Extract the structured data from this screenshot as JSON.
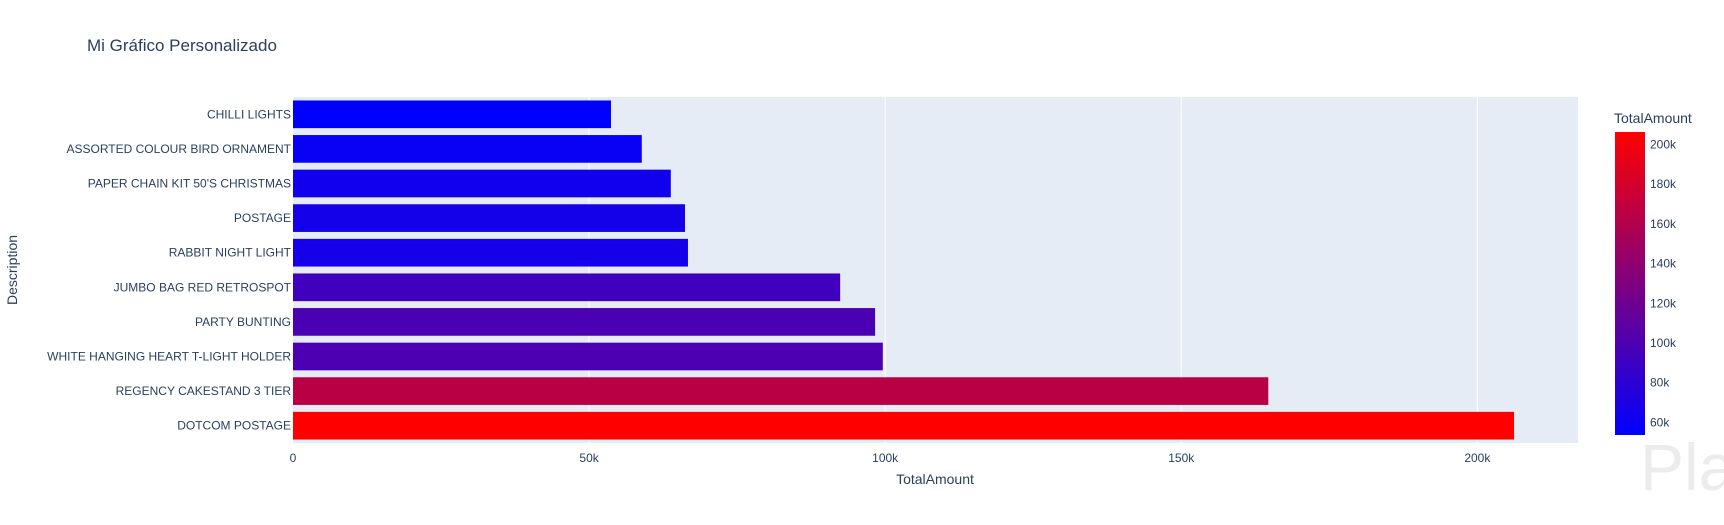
{
  "chart_data": {
    "type": "bar",
    "orientation": "horizontal",
    "title": "Mi Gráfico Personalizado",
    "xlabel": "TotalAmount",
    "ylabel": "Description",
    "categories": [
      "CHILLI LIGHTS",
      "ASSORTED COLOUR BIRD ORNAMENT",
      "PAPER CHAIN KIT 50'S CHRISTMAS",
      "POSTAGE",
      "RABBIT NIGHT LIGHT",
      "JUMBO BAG RED RETROSPOT",
      "PARTY BUNTING",
      "WHITE HANGING HEART T-LIGHT HOLDER",
      "REGENCY CAKESTAND 3 TIER",
      "DOTCOM POSTAGE"
    ],
    "values": [
      53700,
      58900,
      63800,
      66200,
      66700,
      92400,
      98300,
      99600,
      164700,
      206200
    ],
    "xlim": [
      0,
      217000
    ],
    "xticks": [
      0,
      50000,
      100000,
      150000,
      200000
    ],
    "xtick_labels": [
      "0",
      "50k",
      "100k",
      "150k",
      "200k"
    ],
    "grid": true,
    "colorbar": {
      "title": "TotalAmount",
      "range": [
        53700,
        206200
      ],
      "ticks": [
        60000,
        80000,
        100000,
        120000,
        140000,
        160000,
        180000,
        200000
      ],
      "tick_labels": [
        "60k",
        "80k",
        "100k",
        "120k",
        "140k",
        "160k",
        "180k",
        "200k"
      ],
      "color_low": "#0000ff",
      "color_high": "#ff0000"
    }
  },
  "watermark": "Platzi"
}
